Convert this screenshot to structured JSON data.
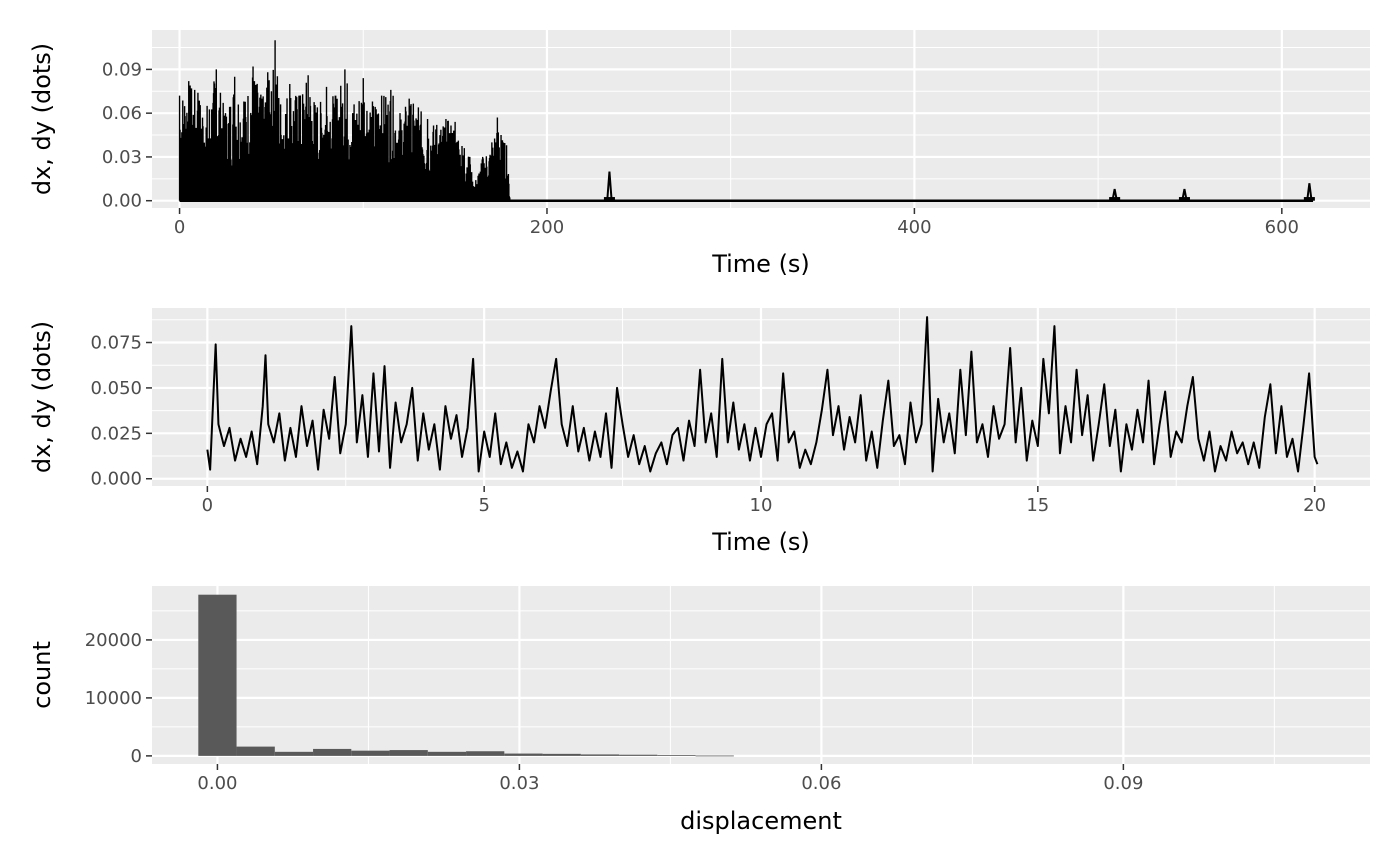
{
  "chart_data": [
    {
      "type": "line",
      "xlabel": "Time (s)",
      "ylabel": "dx, dy (dots)",
      "xlim": [
        -15,
        648
      ],
      "ylim": [
        -0.005,
        0.117
      ],
      "x_ticks": [
        0,
        200,
        400,
        600
      ],
      "x_tick_labels": [
        "0",
        "200",
        "400",
        "600"
      ],
      "y_ticks": [
        0.0,
        0.03,
        0.06,
        0.09
      ],
      "y_tick_labels": [
        "0.00",
        "0.03",
        "0.06",
        "0.09"
      ],
      "grid": true,
      "series": [
        {
          "values_note": "envelope",
          "points": [
            [
              0,
              0.072
            ],
            [
              5,
              0.082
            ],
            [
              10,
              0.074
            ],
            [
              15,
              0.065
            ],
            [
              20,
              0.09
            ],
            [
              25,
              0.06
            ],
            [
              30,
              0.085
            ],
            [
              35,
              0.068
            ],
            [
              40,
              0.092
            ],
            [
              45,
              0.07
            ],
            [
              48,
              0.088
            ],
            [
              50,
              0.075
            ],
            [
              52,
              0.11
            ],
            [
              55,
              0.066
            ],
            [
              60,
              0.08
            ],
            [
              65,
              0.072
            ],
            [
              70,
              0.086
            ],
            [
              75,
              0.064
            ],
            [
              80,
              0.078
            ],
            [
              85,
              0.072
            ],
            [
              90,
              0.09
            ],
            [
              95,
              0.066
            ],
            [
              100,
              0.084
            ],
            [
              105,
              0.068
            ],
            [
              110,
              0.072
            ],
            [
              115,
              0.076
            ],
            [
              120,
              0.06
            ],
            [
              125,
              0.07
            ],
            [
              130,
              0.064
            ],
            [
              135,
              0.056
            ],
            [
              140,
              0.052
            ],
            [
              145,
              0.056
            ],
            [
              150,
              0.054
            ],
            [
              155,
              0.036
            ],
            [
              158,
              0.03
            ],
            [
              160,
              0.01
            ],
            [
              165,
              0.03
            ],
            [
              170,
              0.04
            ],
            [
              173,
              0.057
            ],
            [
              175,
              0.045
            ],
            [
              178,
              0.038
            ],
            [
              180,
              0.0
            ],
            [
              232,
              0.0
            ],
            [
              234,
              0.02
            ],
            [
              236,
              0.0
            ],
            [
              508,
              0.0
            ],
            [
              509,
              0.008
            ],
            [
              510,
              0.0
            ],
            [
              546,
              0.0
            ],
            [
              547,
              0.008
            ],
            [
              548,
              0.0
            ],
            [
              614,
              0.0
            ],
            [
              615,
              0.012
            ],
            [
              617,
              0.0
            ]
          ]
        }
      ]
    },
    {
      "type": "line",
      "xlabel": "Time (s)",
      "ylabel": "dx, dy (dots)",
      "xlim": [
        -1,
        21
      ],
      "ylim": [
        -0.004,
        0.094
      ],
      "x_ticks": [
        0,
        5,
        10,
        15,
        20
      ],
      "x_tick_labels": [
        "0",
        "5",
        "10",
        "15",
        "20"
      ],
      "y_ticks": [
        0.0,
        0.025,
        0.05,
        0.075
      ],
      "y_tick_labels": [
        "0.000",
        "0.025",
        "0.050",
        "0.075"
      ],
      "grid": true,
      "series": [
        {
          "points": [
            [
              0,
              0.016
            ],
            [
              0.05,
              0.005
            ],
            [
              0.1,
              0.04
            ],
            [
              0.15,
              0.074
            ],
            [
              0.2,
              0.03
            ],
            [
              0.3,
              0.018
            ],
            [
              0.4,
              0.028
            ],
            [
              0.5,
              0.01
            ],
            [
              0.6,
              0.022
            ],
            [
              0.7,
              0.012
            ],
            [
              0.8,
              0.026
            ],
            [
              0.9,
              0.008
            ],
            [
              1.0,
              0.04
            ],
            [
              1.05,
              0.068
            ],
            [
              1.1,
              0.03
            ],
            [
              1.2,
              0.02
            ],
            [
              1.3,
              0.036
            ],
            [
              1.4,
              0.01
            ],
            [
              1.5,
              0.028
            ],
            [
              1.6,
              0.012
            ],
            [
              1.7,
              0.04
            ],
            [
              1.8,
              0.018
            ],
            [
              1.9,
              0.032
            ],
            [
              2.0,
              0.005
            ],
            [
              2.1,
              0.038
            ],
            [
              2.2,
              0.022
            ],
            [
              2.3,
              0.056
            ],
            [
              2.4,
              0.014
            ],
            [
              2.5,
              0.03
            ],
            [
              2.6,
              0.084
            ],
            [
              2.7,
              0.02
            ],
            [
              2.8,
              0.046
            ],
            [
              2.9,
              0.012
            ],
            [
              3.0,
              0.058
            ],
            [
              3.1,
              0.015
            ],
            [
              3.2,
              0.062
            ],
            [
              3.3,
              0.006
            ],
            [
              3.4,
              0.042
            ],
            [
              3.5,
              0.02
            ],
            [
              3.6,
              0.03
            ],
            [
              3.7,
              0.05
            ],
            [
              3.8,
              0.01
            ],
            [
              3.9,
              0.036
            ],
            [
              4.0,
              0.016
            ],
            [
              4.1,
              0.03
            ],
            [
              4.2,
              0.005
            ],
            [
              4.3,
              0.04
            ],
            [
              4.4,
              0.022
            ],
            [
              4.5,
              0.035
            ],
            [
              4.6,
              0.012
            ],
            [
              4.7,
              0.028
            ],
            [
              4.8,
              0.066
            ],
            [
              4.9,
              0.004
            ],
            [
              5.0,
              0.026
            ],
            [
              5.1,
              0.012
            ],
            [
              5.2,
              0.036
            ],
            [
              5.3,
              0.008
            ],
            [
              5.4,
              0.02
            ],
            [
              5.5,
              0.006
            ],
            [
              5.6,
              0.015
            ],
            [
              5.7,
              0.004
            ],
            [
              5.8,
              0.03
            ],
            [
              5.9,
              0.02
            ],
            [
              6.0,
              0.04
            ],
            [
              6.1,
              0.028
            ],
            [
              6.2,
              0.048
            ],
            [
              6.3,
              0.066
            ],
            [
              6.4,
              0.03
            ],
            [
              6.5,
              0.018
            ],
            [
              6.6,
              0.04
            ],
            [
              6.7,
              0.015
            ],
            [
              6.8,
              0.028
            ],
            [
              6.9,
              0.01
            ],
            [
              7.0,
              0.026
            ],
            [
              7.1,
              0.012
            ],
            [
              7.2,
              0.036
            ],
            [
              7.3,
              0.006
            ],
            [
              7.4,
              0.05
            ],
            [
              7.5,
              0.03
            ],
            [
              7.6,
              0.012
            ],
            [
              7.7,
              0.024
            ],
            [
              7.8,
              0.008
            ],
            [
              7.9,
              0.018
            ],
            [
              8.0,
              0.004
            ],
            [
              8.1,
              0.014
            ],
            [
              8.2,
              0.02
            ],
            [
              8.3,
              0.008
            ],
            [
              8.4,
              0.024
            ],
            [
              8.5,
              0.028
            ],
            [
              8.6,
              0.01
            ],
            [
              8.7,
              0.032
            ],
            [
              8.8,
              0.018
            ],
            [
              8.9,
              0.06
            ],
            [
              9.0,
              0.02
            ],
            [
              9.1,
              0.036
            ],
            [
              9.2,
              0.012
            ],
            [
              9.3,
              0.066
            ],
            [
              9.4,
              0.02
            ],
            [
              9.5,
              0.042
            ],
            [
              9.6,
              0.016
            ],
            [
              9.7,
              0.03
            ],
            [
              9.8,
              0.01
            ],
            [
              9.9,
              0.028
            ],
            [
              10.0,
              0.012
            ],
            [
              10.1,
              0.03
            ],
            [
              10.2,
              0.036
            ],
            [
              10.3,
              0.01
            ],
            [
              10.4,
              0.058
            ],
            [
              10.5,
              0.02
            ],
            [
              10.6,
              0.026
            ],
            [
              10.7,
              0.006
            ],
            [
              10.8,
              0.016
            ],
            [
              10.9,
              0.008
            ],
            [
              11.0,
              0.02
            ],
            [
              11.1,
              0.038
            ],
            [
              11.2,
              0.06
            ],
            [
              11.3,
              0.024
            ],
            [
              11.4,
              0.04
            ],
            [
              11.5,
              0.016
            ],
            [
              11.6,
              0.034
            ],
            [
              11.7,
              0.02
            ],
            [
              11.8,
              0.046
            ],
            [
              11.9,
              0.01
            ],
            [
              12.0,
              0.026
            ],
            [
              12.1,
              0.006
            ],
            [
              12.2,
              0.032
            ],
            [
              12.3,
              0.054
            ],
            [
              12.4,
              0.018
            ],
            [
              12.5,
              0.024
            ],
            [
              12.6,
              0.008
            ],
            [
              12.7,
              0.042
            ],
            [
              12.8,
              0.02
            ],
            [
              12.9,
              0.03
            ],
            [
              13.0,
              0.089
            ],
            [
              13.1,
              0.004
            ],
            [
              13.2,
              0.044
            ],
            [
              13.3,
              0.02
            ],
            [
              13.4,
              0.036
            ],
            [
              13.5,
              0.014
            ],
            [
              13.6,
              0.06
            ],
            [
              13.7,
              0.024
            ],
            [
              13.8,
              0.07
            ],
            [
              13.9,
              0.02
            ],
            [
              14.0,
              0.03
            ],
            [
              14.1,
              0.012
            ],
            [
              14.2,
              0.04
            ],
            [
              14.3,
              0.022
            ],
            [
              14.4,
              0.03
            ],
            [
              14.5,
              0.072
            ],
            [
              14.6,
              0.02
            ],
            [
              14.7,
              0.05
            ],
            [
              14.8,
              0.01
            ],
            [
              14.9,
              0.032
            ],
            [
              15.0,
              0.018
            ],
            [
              15.1,
              0.066
            ],
            [
              15.2,
              0.036
            ],
            [
              15.3,
              0.084
            ],
            [
              15.4,
              0.014
            ],
            [
              15.5,
              0.04
            ],
            [
              15.6,
              0.02
            ],
            [
              15.7,
              0.06
            ],
            [
              15.8,
              0.024
            ],
            [
              15.9,
              0.046
            ],
            [
              16.0,
              0.01
            ],
            [
              16.1,
              0.03
            ],
            [
              16.2,
              0.052
            ],
            [
              16.3,
              0.018
            ],
            [
              16.4,
              0.038
            ],
            [
              16.5,
              0.004
            ],
            [
              16.6,
              0.03
            ],
            [
              16.7,
              0.016
            ],
            [
              16.8,
              0.038
            ],
            [
              16.9,
              0.02
            ],
            [
              17.0,
              0.054
            ],
            [
              17.1,
              0.008
            ],
            [
              17.2,
              0.03
            ],
            [
              17.3,
              0.048
            ],
            [
              17.4,
              0.012
            ],
            [
              17.5,
              0.026
            ],
            [
              17.6,
              0.02
            ],
            [
              17.7,
              0.04
            ],
            [
              17.8,
              0.056
            ],
            [
              17.9,
              0.022
            ],
            [
              18.0,
              0.01
            ],
            [
              18.1,
              0.026
            ],
            [
              18.2,
              0.004
            ],
            [
              18.3,
              0.018
            ],
            [
              18.4,
              0.01
            ],
            [
              18.5,
              0.026
            ],
            [
              18.6,
              0.014
            ],
            [
              18.7,
              0.02
            ],
            [
              18.8,
              0.008
            ],
            [
              18.9,
              0.02
            ],
            [
              19.0,
              0.006
            ],
            [
              19.1,
              0.034
            ],
            [
              19.2,
              0.052
            ],
            [
              19.3,
              0.014
            ],
            [
              19.4,
              0.04
            ],
            [
              19.5,
              0.012
            ],
            [
              19.6,
              0.022
            ],
            [
              19.7,
              0.004
            ],
            [
              19.8,
              0.03
            ],
            [
              19.9,
              0.058
            ],
            [
              20.0,
              0.012
            ],
            [
              20.05,
              0.008
            ]
          ]
        }
      ]
    },
    {
      "type": "bar",
      "xlabel": "displacement",
      "ylabel": "count",
      "xlim": [
        -0.0065,
        0.1145
      ],
      "ylim": [
        -1400,
        29300
      ],
      "x_ticks": [
        0.0,
        0.03,
        0.06,
        0.09
      ],
      "x_tick_labels": [
        "0.00",
        "0.03",
        "0.06",
        "0.09"
      ],
      "y_ticks": [
        0,
        10000,
        20000
      ],
      "y_tick_labels": [
        "0",
        "10000",
        "20000"
      ],
      "grid": true,
      "bin_width": 0.0038,
      "bin_start": -0.0019,
      "values": [
        27800,
        1600,
        700,
        1200,
        900,
        1000,
        700,
        800,
        400,
        350,
        250,
        200,
        120,
        60
      ]
    }
  ]
}
